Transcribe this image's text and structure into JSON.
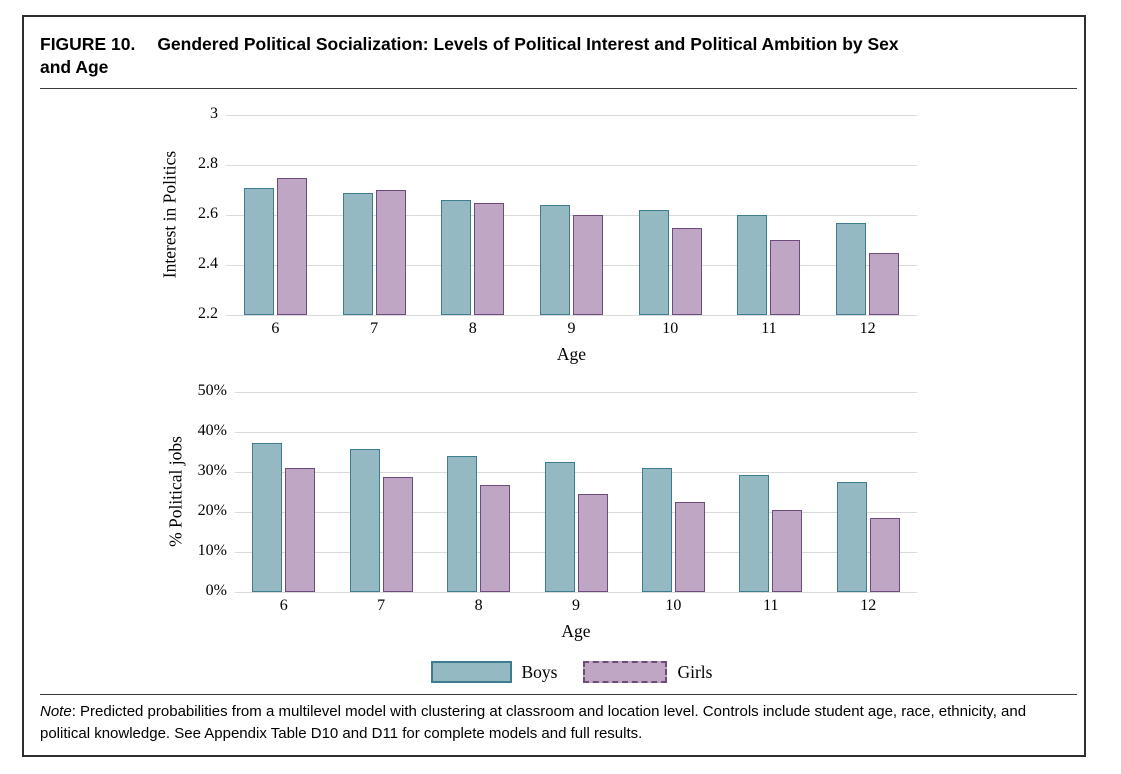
{
  "figure": {
    "label": "FIGURE 10.",
    "title_line1": "Gendered Political Socialization: Levels of Political Interest and Political Ambition by Sex",
    "title_line2": "and Age"
  },
  "note": {
    "prefix": "Note",
    "body": ": Predicted probabilities from a multilevel model with clustering at classroom and location level. Controls include student age, race, ethnicity, and political knowledge. See Appendix Table D10 and D11 for complete models and full results."
  },
  "legend": [
    {
      "label": "Boys",
      "swatch_style": "solid"
    },
    {
      "label": "Girls",
      "swatch_style": "dashed"
    }
  ],
  "colors": {
    "boys_fill": "#95b9c3",
    "boys_border": "#3e7c8f",
    "girls_fill": "#c0a6c5",
    "girls_border": "#6e4a7d",
    "gridline": "#dadada"
  },
  "chart_data": [
    {
      "type": "bar",
      "title": "",
      "categories": [
        "6",
        "7",
        "8",
        "9",
        "10",
        "11",
        "12"
      ],
      "xlabel": "Age",
      "ylabel": "Interest in Politics",
      "ylim": [
        2.2,
        3
      ],
      "yticks": {
        "values": [
          2.2,
          2.4,
          2.6,
          2.8,
          3
        ],
        "labels": [
          "2.2",
          "2.4",
          "2.6",
          "2.8",
          "3"
        ]
      },
      "grid": true,
      "legend_position": "none",
      "series": [
        {
          "name": "Boys",
          "values": [
            2.71,
            2.69,
            2.66,
            2.64,
            2.62,
            2.6,
            2.57
          ]
        },
        {
          "name": "Girls",
          "values": [
            2.75,
            2.7,
            2.65,
            2.6,
            2.55,
            2.5,
            2.45
          ]
        }
      ]
    },
    {
      "type": "bar",
      "title": "",
      "categories": [
        "6",
        "7",
        "8",
        "9",
        "10",
        "11",
        "12"
      ],
      "xlabel": "Age",
      "ylabel": "% Political jobs",
      "ylim": [
        0,
        50
      ],
      "yticks": {
        "values": [
          0,
          10,
          20,
          30,
          40,
          50
        ],
        "labels": [
          "0%",
          "10%",
          "20%",
          "30%",
          "40%",
          "50%"
        ]
      },
      "grid": true,
      "legend_position": "bottom-center",
      "series": [
        {
          "name": "Boys",
          "values": [
            37.2,
            35.7,
            34.1,
            32.4,
            30.9,
            29.3,
            27.6
          ]
        },
        {
          "name": "Girls",
          "values": [
            30.9,
            28.8,
            26.7,
            24.5,
            22.4,
            20.5,
            18.4
          ]
        }
      ]
    }
  ]
}
